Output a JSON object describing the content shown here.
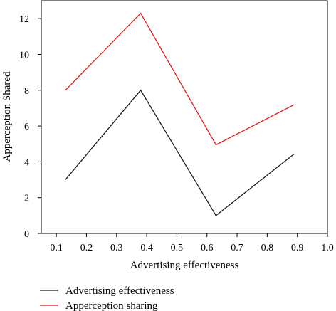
{
  "chart_data": {
    "type": "line",
    "xlabel": "Advertising effectiveness",
    "ylabel": "Apperception Shared",
    "xlim": [
      0.05,
      1.0
    ],
    "ylim": [
      0,
      13
    ],
    "x_ticks": [
      "0.1",
      "0.2",
      "0.3",
      "0.4",
      "0.5",
      "0.6",
      "0.7",
      "0.8",
      "0.9",
      "1.0"
    ],
    "y_ticks": [
      "0",
      "2",
      "4",
      "6",
      "8",
      "10",
      "12"
    ],
    "grid": false,
    "legend_position": "bottom-left, below plot",
    "series": [
      {
        "name": "Advertising effectiveness",
        "color": "#1a1a1a",
        "x": [
          0.13,
          0.38,
          0.63,
          0.89
        ],
        "y": [
          3.0,
          8.0,
          1.0,
          4.45
        ]
      },
      {
        "name": "Apperception sharing",
        "color": "#e8191c",
        "x": [
          0.13,
          0.38,
          0.63,
          0.89
        ],
        "y": [
          8.0,
          12.3,
          4.95,
          7.2
        ]
      }
    ]
  }
}
